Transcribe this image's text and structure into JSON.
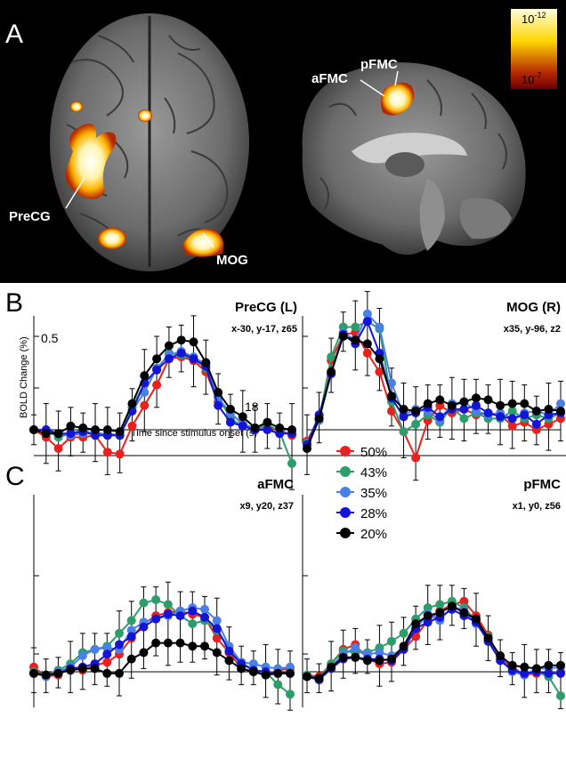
{
  "panel_a": {
    "letter": "A",
    "labels": {
      "precg": "PreCG",
      "mog": "MOG",
      "pfmc": "pFMC",
      "afmc": "aFMC"
    },
    "colorbar": {
      "top_label_base": "10",
      "top_label_exp": "-12",
      "bottom_label_base": "10",
      "bottom_label_exp": "-7",
      "colors": [
        "#fffde0",
        "#ffd700",
        "#b42800",
        "#6e0000"
      ]
    }
  },
  "panel_b": {
    "letter": "B"
  },
  "panel_c": {
    "letter": "C"
  },
  "legend": {
    "items": [
      {
        "label": "50%",
        "color": "#e8211f"
      },
      {
        "label": "43%",
        "color": "#2d9d6b"
      },
      {
        "label": "35%",
        "color": "#4a7fe8"
      },
      {
        "label": "28%",
        "color": "#1414d6"
      },
      {
        "label": "20%",
        "color": "#000000"
      }
    ]
  },
  "chart_data": [
    {
      "type": "line",
      "title": "PreCG (L)",
      "subtitle": "x-30, y-17, z65",
      "ylabel": "BOLD Change (%)",
      "xlabel": "Time since stimulus onset (s)",
      "y_tick_label": "0.5",
      "x_tick_label": "18",
      "x": [
        0,
        1,
        2,
        3,
        4,
        5,
        6,
        7,
        8,
        9,
        10,
        11,
        12,
        13,
        14,
        15,
        16,
        17,
        18,
        19,
        20,
        21
      ],
      "ylim": [
        -0.55,
        0.65
      ],
      "xlim": [
        0,
        21
      ],
      "series": [
        {
          "name": "50%",
          "values": [
            0.0,
            -0.04,
            -0.1,
            -0.04,
            -0.04,
            -0.03,
            -0.12,
            -0.13,
            0.02,
            0.13,
            0.24,
            0.38,
            0.39,
            0.37,
            0.31,
            0.15,
            0.09,
            0.03,
            0.0,
            0.01,
            0.0,
            -0.03
          ]
        },
        {
          "name": "43%",
          "values": [
            0.0,
            0.0,
            -0.04,
            -0.02,
            0.0,
            -0.03,
            -0.02,
            -0.03,
            0.12,
            0.25,
            0.32,
            0.41,
            0.4,
            0.38,
            0.33,
            0.18,
            0.06,
            0.02,
            0.0,
            0.03,
            -0.01,
            -0.18
          ]
        },
        {
          "name": "35%",
          "values": [
            0.0,
            0.0,
            -0.02,
            -0.03,
            -0.02,
            -0.01,
            -0.03,
            -0.03,
            0.1,
            0.2,
            0.33,
            0.4,
            0.42,
            0.39,
            0.35,
            0.17,
            0.09,
            0.03,
            0.01,
            0.0,
            -0.02,
            -0.02
          ]
        },
        {
          "name": "28%",
          "values": [
            0.0,
            0.0,
            -0.02,
            -0.02,
            -0.01,
            -0.03,
            -0.03,
            -0.03,
            0.1,
            0.25,
            0.32,
            0.38,
            0.41,
            0.38,
            0.34,
            0.13,
            0.04,
            0.02,
            0.0,
            0.0,
            -0.02,
            -0.02
          ]
        },
        {
          "name": "20%",
          "values": [
            0.0,
            -0.02,
            -0.02,
            0.02,
            0.01,
            0.0,
            0.0,
            -0.01,
            0.14,
            0.29,
            0.38,
            0.45,
            0.48,
            0.47,
            0.36,
            0.2,
            0.11,
            0.07,
            0.01,
            0.04,
            0.01,
            0.0
          ]
        }
      ]
    },
    {
      "type": "line",
      "title": "MOG (R)",
      "subtitle": "x35, y-96, z2",
      "x": [
        0,
        1,
        2,
        3,
        4,
        5,
        6,
        7,
        8,
        9,
        10,
        11,
        12,
        13,
        14,
        15,
        16,
        17,
        18,
        19,
        20,
        21
      ],
      "ylim": [
        -0.55,
        0.65
      ],
      "xlim": [
        0,
        21
      ],
      "series": [
        {
          "name": "50%",
          "values": [
            -0.06,
            0.06,
            0.37,
            0.51,
            0.52,
            0.41,
            0.31,
            0.1,
            -0.01,
            -0.15,
            0.05,
            0.13,
            0.09,
            0.11,
            0.08,
            0.09,
            0.08,
            0.02,
            0.04,
            0.0,
            0.03,
            0.06
          ]
        },
        {
          "name": "43%",
          "values": [
            -0.07,
            0.05,
            0.39,
            0.55,
            0.55,
            0.58,
            0.54,
            0.15,
            -0.01,
            0.03,
            0.08,
            0.04,
            0.12,
            0.06,
            0.09,
            0.06,
            0.06,
            0.1,
            0.06,
            0.08,
            0.06,
            0.09
          ]
        },
        {
          "name": "35%",
          "values": [
            -0.08,
            0.05,
            0.3,
            0.52,
            0.48,
            0.62,
            0.55,
            0.25,
            0.08,
            0.11,
            0.1,
            0.05,
            0.14,
            0.15,
            0.1,
            0.08,
            0.09,
            0.06,
            0.09,
            0.1,
            0.08,
            0.14
          ]
        },
        {
          "name": "28%",
          "values": [
            -0.08,
            0.08,
            0.3,
            0.51,
            0.46,
            0.58,
            0.41,
            0.17,
            0.07,
            0.09,
            0.12,
            0.07,
            0.11,
            0.11,
            0.13,
            0.09,
            0.07,
            0.06,
            0.08,
            0.03,
            0.08,
            0.09
          ]
        },
        {
          "name": "20%",
          "values": [
            -0.1,
            0.06,
            0.31,
            0.5,
            0.48,
            0.46,
            0.38,
            0.18,
            0.11,
            0.1,
            0.14,
            0.16,
            0.13,
            0.15,
            0.17,
            0.16,
            0.13,
            0.14,
            0.14,
            0.1,
            0.11,
            0.1
          ]
        }
      ]
    },
    {
      "type": "line",
      "title": "aFMC",
      "subtitle": "x9, y20, z37",
      "x": [
        0,
        1,
        2,
        3,
        4,
        5,
        6,
        7,
        8,
        9,
        10,
        11,
        12,
        13,
        14,
        15,
        16,
        17,
        18,
        19,
        20,
        21
      ],
      "ylim": [
        -0.55,
        0.65
      ],
      "xlim": [
        0,
        21
      ],
      "series": [
        {
          "name": "50%",
          "values": [
            0.03,
            -0.03,
            -0.02,
            0.03,
            0.01,
            0.04,
            0.06,
            0.11,
            0.21,
            0.3,
            0.35,
            0.37,
            0.38,
            0.36,
            0.34,
            0.21,
            0.12,
            0.02,
            0.0,
            -0.02,
            0.01,
            0.02
          ]
        },
        {
          "name": "43%",
          "values": [
            0.0,
            -0.02,
            0.01,
            0.05,
            0.12,
            0.14,
            0.16,
            0.24,
            0.32,
            0.43,
            0.45,
            0.42,
            0.35,
            0.3,
            0.32,
            0.26,
            0.15,
            0.06,
            0.01,
            0.0,
            -0.08,
            -0.14
          ]
        },
        {
          "name": "35%",
          "values": [
            -0.01,
            -0.03,
            0.0,
            0.03,
            0.1,
            0.14,
            0.15,
            0.14,
            0.26,
            0.31,
            0.33,
            0.35,
            0.38,
            0.4,
            0.39,
            0.32,
            0.16,
            0.06,
            0.05,
            0.03,
            0.02,
            0.03
          ]
        },
        {
          "name": "28%",
          "values": [
            -0.01,
            -0.02,
            -0.01,
            0.02,
            0.03,
            0.05,
            0.11,
            0.17,
            0.22,
            0.28,
            0.33,
            0.36,
            0.35,
            0.38,
            0.34,
            0.27,
            0.13,
            0.05,
            0.01,
            0.0,
            -0.01,
            -0.01
          ]
        },
        {
          "name": "20%",
          "values": [
            -0.01,
            -0.02,
            -0.01,
            0.01,
            0.02,
            0.02,
            -0.01,
            -0.01,
            0.08,
            0.12,
            0.18,
            0.18,
            0.18,
            0.16,
            0.16,
            0.12,
            0.07,
            0.02,
            0.0,
            -0.02,
            -0.01,
            -0.01
          ]
        }
      ]
    },
    {
      "type": "line",
      "title": "pFMC",
      "subtitle": "x1, y0, z56",
      "x": [
        0,
        1,
        2,
        3,
        4,
        5,
        6,
        7,
        8,
        9,
        10,
        11,
        12,
        13,
        14,
        15,
        16,
        17,
        18,
        19,
        20,
        21
      ],
      "ylim": [
        -0.55,
        0.65
      ],
      "xlim": [
        0,
        21
      ],
      "series": [
        {
          "name": "50%",
          "values": [
            -0.02,
            -0.03,
            0.05,
            0.14,
            0.17,
            0.08,
            0.05,
            0.06,
            0.14,
            0.22,
            0.32,
            0.38,
            0.42,
            0.44,
            0.35,
            0.23,
            0.08,
            0.03,
            -0.02,
            -0.01,
            -0.01,
            0.0
          ]
        },
        {
          "name": "43%",
          "values": [
            -0.02,
            -0.04,
            0.05,
            0.13,
            0.12,
            0.12,
            0.15,
            0.19,
            0.24,
            0.33,
            0.4,
            0.42,
            0.44,
            0.4,
            0.32,
            0.22,
            0.08,
            0.01,
            -0.01,
            0.0,
            -0.03,
            -0.15
          ]
        },
        {
          "name": "35%",
          "values": [
            -0.03,
            -0.05,
            0.03,
            0.11,
            0.15,
            0.11,
            0.12,
            0.1,
            0.15,
            0.27,
            0.36,
            0.32,
            0.41,
            0.38,
            0.3,
            0.2,
            0.08,
            0.0,
            -0.02,
            0.02,
            0.02,
            0.03
          ]
        },
        {
          "name": "28%",
          "values": [
            -0.03,
            -0.05,
            0.02,
            0.08,
            0.09,
            0.08,
            0.08,
            0.07,
            0.14,
            0.27,
            0.31,
            0.34,
            0.39,
            0.35,
            0.31,
            0.19,
            0.07,
            0.01,
            -0.01,
            0.0,
            -0.01,
            -0.01
          ]
        },
        {
          "name": "20%",
          "values": [
            -0.03,
            -0.04,
            0.03,
            0.09,
            0.09,
            0.07,
            0.07,
            0.08,
            0.16,
            0.3,
            0.35,
            0.37,
            0.41,
            0.37,
            0.33,
            0.21,
            0.1,
            0.04,
            0.03,
            0.02,
            0.04,
            0.04
          ]
        }
      ]
    }
  ]
}
